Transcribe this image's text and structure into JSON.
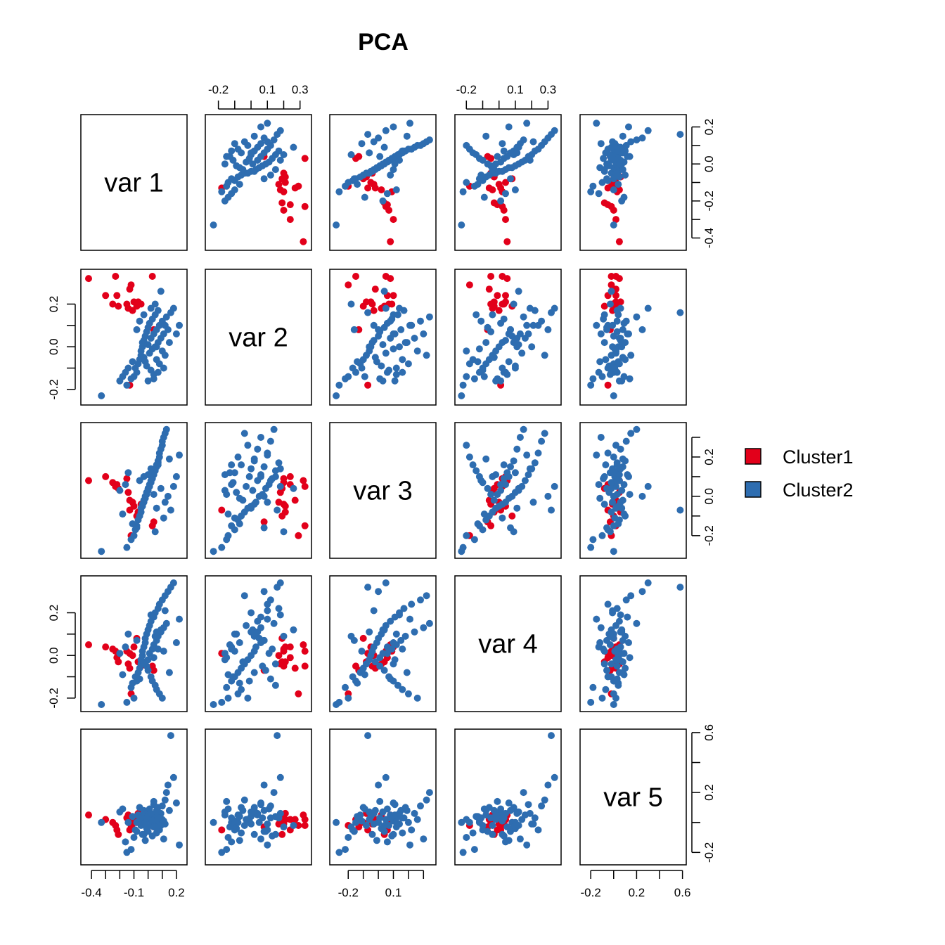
{
  "title": "PCA",
  "variables": [
    "var 1",
    "var 2",
    "var 3",
    "var 4",
    "var 5"
  ],
  "legend": [
    {
      "label": "Cluster1",
      "color": "#E2001A"
    },
    {
      "label": "Cluster2",
      "color": "#2E6DB0"
    }
  ],
  "chart_data": {
    "type": "scatter",
    "subtype": "scatterplot-matrix",
    "title": "PCA",
    "variables": [
      "var 1",
      "var 2",
      "var 3",
      "var 4",
      "var 5"
    ],
    "ranges": [
      [
        -0.44,
        0.24
      ],
      [
        -0.25,
        0.34
      ],
      [
        -0.29,
        0.35
      ],
      [
        -0.24,
        0.35
      ],
      [
        -0.25,
        0.59
      ]
    ],
    "axis_ticks": {
      "var1": {
        "values": [
          -0.4,
          -0.3,
          -0.2,
          -0.1,
          0.0,
          0.1,
          0.2
        ],
        "labels": [
          "-0.4",
          "",
          "",
          "-0.1",
          "",
          "",
          "0.2"
        ]
      },
      "var2": {
        "values": [
          -0.2,
          -0.1,
          0.0,
          0.1,
          0.2,
          0.3
        ],
        "labels": [
          "-0.2",
          "",
          "",
          "0.1",
          "",
          "0.3"
        ]
      },
      "var3": {
        "values": [
          -0.2,
          -0.1,
          0.0,
          0.1,
          0.2,
          0.3
        ],
        "labels": [
          "-0.2",
          "",
          "",
          "0.1",
          "",
          ""
        ]
      },
      "var4": {
        "values": [
          -0.2,
          -0.1,
          0.0,
          0.1,
          0.2,
          0.3
        ],
        "labels": [
          "-0.2",
          "",
          "",
          "0.1",
          "",
          "0.3"
        ]
      },
      "var5": {
        "values": [
          -0.2,
          0.0,
          0.2,
          0.4,
          0.6
        ],
        "labels": [
          "-0.2",
          "",
          "0.2",
          "",
          "0.6"
        ]
      }
    },
    "axis_ticks_left": {
      "var2": {
        "values": [
          -0.2,
          -0.1,
          0.0,
          0.1,
          0.2
        ],
        "labels": [
          "-0.2",
          "",
          "0.0",
          "",
          "0.2"
        ]
      },
      "var4": {
        "values": [
          -0.2,
          -0.1,
          0.0,
          0.1,
          0.2
        ],
        "labels": [
          "-0.2",
          "",
          "0.0",
          "",
          "0.2"
        ]
      }
    },
    "axis_ticks_right": {
      "var1": {
        "values": [
          -0.4,
          -0.3,
          -0.2,
          -0.1,
          0.0,
          0.1,
          0.2
        ],
        "labels": [
          "-0.4",
          "",
          "-0.2",
          "",
          "0.0",
          "",
          "0.2"
        ]
      },
      "var3": {
        "values": [
          -0.2,
          -0.1,
          0.0,
          0.1,
          0.2,
          0.3
        ],
        "labels": [
          "-0.2",
          "",
          "0.0",
          "",
          "0.2",
          ""
        ]
      },
      "var5": {
        "values": [
          -0.2,
          0.0,
          0.2,
          0.4,
          0.6
        ],
        "labels": [
          "-0.2",
          "",
          "0.2",
          "",
          "0.6"
        ]
      }
    },
    "series": [
      {
        "name": "Cluster1",
        "color": "#E2001A",
        "points": [
          [
            -0.42,
            0.32,
            0.08,
            0.05,
            0.05
          ],
          [
            -0.3,
            0.24,
            0.1,
            0.04,
            0.02
          ],
          [
            -0.25,
            0.2,
            0.07,
            0.03,
            0.0
          ],
          [
            -0.23,
            0.33,
            0.05,
            0.02,
            -0.02
          ],
          [
            -0.22,
            0.24,
            0.06,
            -0.01,
            -0.05
          ],
          [
            -0.21,
            0.19,
            0.04,
            -0.03,
            -0.08
          ],
          [
            -0.15,
            0.2,
            0.09,
            0.02,
            0.03
          ],
          [
            -0.14,
            0.18,
            0.02,
            -0.04,
            0.05
          ],
          [
            -0.13,
            0.27,
            -0.02,
            -0.06,
            0.02
          ],
          [
            -0.12,
            0.29,
            -0.2,
            -0.18,
            -0.02
          ],
          [
            -0.11,
            0.17,
            -0.03,
            0.0,
            -0.01
          ],
          [
            -0.1,
            0.21,
            -0.05,
            0.04,
            0.02
          ],
          [
            -0.08,
            0.19,
            -0.1,
            0.08,
            0.0
          ],
          [
            -0.07,
            0.21,
            -0.08,
            -0.03,
            0.06
          ],
          [
            -0.05,
            0.2,
            -0.04,
            -0.05,
            -0.01
          ],
          [
            0.03,
            0.33,
            -0.15,
            -0.05,
            0.02
          ],
          [
            0.04,
            0.08,
            -0.13,
            -0.07,
            -0.03
          ],
          [
            -0.13,
            -0.18,
            -0.07,
            0.01,
            -0.05
          ]
        ]
      },
      {
        "name": "Cluster2",
        "color": "#2E6DB0",
        "points": [
          [
            -0.33,
            -0.23,
            -0.28,
            -0.23,
            0.0
          ],
          [
            -0.15,
            -0.18,
            -0.26,
            -0.22,
            -0.2
          ],
          [
            -0.12,
            -0.15,
            -0.22,
            -0.15,
            -0.18
          ],
          [
            -0.1,
            -0.14,
            -0.2,
            -0.2,
            -0.1
          ],
          [
            -0.09,
            -0.1,
            -0.17,
            -0.1,
            -0.05
          ],
          [
            -0.08,
            -0.12,
            -0.15,
            -0.12,
            0.0
          ],
          [
            -0.07,
            -0.08,
            -0.12,
            -0.08,
            0.05
          ],
          [
            -0.06,
            -0.06,
            -0.1,
            -0.06,
            0.1
          ],
          [
            -0.05,
            -0.04,
            -0.08,
            -0.04,
            -0.02
          ],
          [
            -0.05,
            -0.02,
            -0.06,
            -0.02,
            0.02
          ],
          [
            -0.04,
            0.0,
            -0.05,
            0.0,
            0.04
          ],
          [
            -0.04,
            0.02,
            -0.04,
            0.02,
            -0.08
          ],
          [
            -0.03,
            0.03,
            -0.03,
            0.04,
            0.06
          ],
          [
            -0.03,
            -0.05,
            -0.02,
            -0.03,
            0.08
          ],
          [
            -0.02,
            -0.07,
            -0.01,
            0.06,
            -0.12
          ],
          [
            -0.02,
            0.05,
            0.0,
            0.08,
            0.0
          ],
          [
            -0.01,
            0.07,
            0.01,
            -0.05,
            0.03
          ],
          [
            -0.01,
            -0.09,
            0.02,
            0.1,
            -0.04
          ],
          [
            0.0,
            0.01,
            0.03,
            0.12,
            0.07
          ],
          [
            0.0,
            0.09,
            0.04,
            -0.07,
            -0.06
          ],
          [
            0.01,
            -0.03,
            0.05,
            0.14,
            0.02
          ],
          [
            0.01,
            0.11,
            0.06,
            0.01,
            0.09
          ],
          [
            0.02,
            -0.11,
            0.07,
            -0.1,
            -0.02
          ],
          [
            0.02,
            0.04,
            0.08,
            0.16,
            0.05
          ],
          [
            0.03,
            0.13,
            0.09,
            0.03,
            -0.09
          ],
          [
            0.03,
            -0.01,
            0.1,
            -0.12,
            0.01
          ],
          [
            0.04,
            0.06,
            0.11,
            0.18,
            0.12
          ],
          [
            0.04,
            -0.13,
            0.12,
            0.05,
            -0.03
          ],
          [
            0.05,
            0.15,
            0.13,
            -0.14,
            0.04
          ],
          [
            0.05,
            0.0,
            0.14,
            0.2,
            -0.01
          ],
          [
            0.06,
            0.08,
            0.15,
            0.07,
            0.08
          ],
          [
            0.06,
            -0.06,
            0.16,
            -0.16,
            -0.07
          ],
          [
            0.07,
            0.17,
            0.17,
            0.22,
            0.03
          ],
          [
            0.07,
            0.02,
            0.18,
            0.09,
            0.1
          ],
          [
            0.08,
            -0.08,
            0.2,
            -0.18,
            0.0
          ],
          [
            0.08,
            0.1,
            0.22,
            0.24,
            -0.05
          ],
          [
            0.09,
            0.04,
            0.24,
            0.11,
            0.06
          ],
          [
            0.1,
            -0.02,
            0.26,
            -0.2,
            0.02
          ],
          [
            0.1,
            0.12,
            0.28,
            0.26,
            0.11
          ],
          [
            0.11,
            0.06,
            0.3,
            0.13,
            -0.11
          ],
          [
            0.12,
            -0.04,
            0.32,
            0.28,
            0.15
          ],
          [
            0.13,
            0.14,
            0.34,
            0.15,
            0.2
          ],
          [
            0.14,
            0.08,
            0.0,
            0.3,
            0.25
          ],
          [
            0.16,
            0.16,
            -0.07,
            0.32,
            0.58
          ],
          [
            0.18,
            0.18,
            0.05,
            0.34,
            0.3
          ],
          [
            0.2,
            0.06,
            0.1,
            0.06,
            0.13
          ],
          [
            0.22,
            0.1,
            0.21,
            0.17,
            -0.15
          ],
          [
            -0.2,
            -0.16,
            0.03,
            0.01,
            0.07
          ],
          [
            -0.18,
            -0.14,
            -0.09,
            -0.09,
            0.09
          ],
          [
            -0.16,
            -0.12,
            0.06,
            0.04,
            -0.13
          ],
          [
            -0.14,
            -0.1,
            0.12,
            0.1,
            0.0
          ],
          [
            -0.11,
            -0.07,
            -0.14,
            -0.13,
            0.04
          ],
          [
            0.0,
            -0.16,
            0.11,
            -0.02,
            0.05
          ],
          [
            0.05,
            0.2,
            -0.18,
            0.09,
            -0.03
          ],
          [
            0.02,
            0.18,
            0.14,
            0.19,
            0.06
          ],
          [
            -0.06,
            0.12,
            0.08,
            -0.11,
            0.03
          ],
          [
            0.09,
            0.26,
            0.04,
            0.12,
            -0.02
          ],
          [
            0.11,
            -0.1,
            -0.11,
            0.02,
            0.01
          ],
          [
            0.15,
            0.02,
            0.19,
            -0.08,
            0.08
          ],
          [
            -0.08,
            0.08,
            -0.16,
            0.07,
            -0.06
          ],
          [
            0.04,
            -0.15,
            0.01,
            -0.01,
            0.14
          ],
          [
            0.06,
            0.0,
            -0.06,
            0.11,
            0.07
          ],
          [
            -0.03,
            0.15,
            0.1,
            -0.04,
            -0.08
          ],
          [
            0.07,
            -0.12,
            0.16,
            0.03,
            0.03
          ],
          [
            0.12,
            0.1,
            -0.03,
            0.21,
            -0.01
          ]
        ]
      }
    ]
  }
}
